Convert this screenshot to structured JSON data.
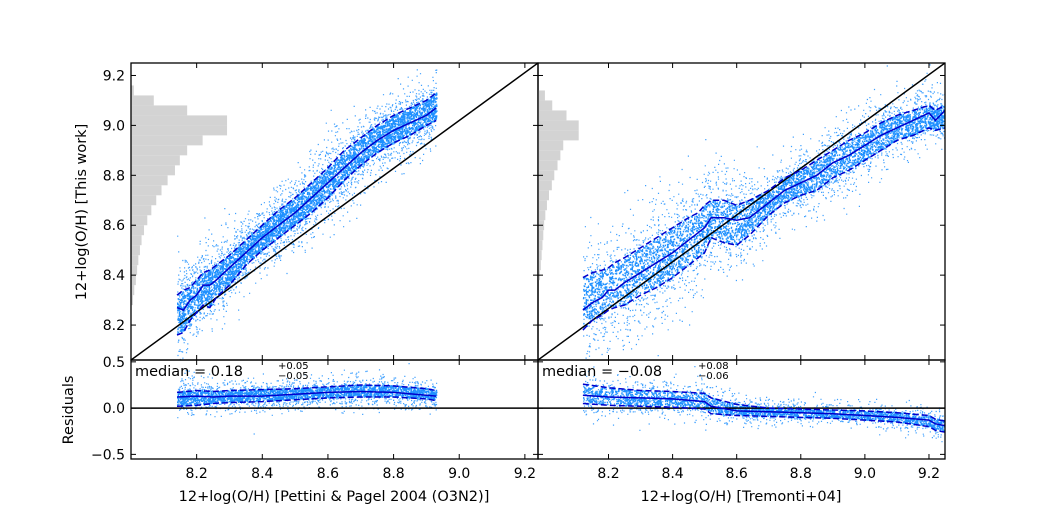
{
  "chart_data": [
    {
      "id": "left-top",
      "type": "scatter",
      "xlim": [
        8.0,
        9.24
      ],
      "ylim": [
        8.06,
        9.25
      ],
      "x_ticks": [
        8.2,
        8.4,
        8.6,
        8.8,
        9.0,
        9.2
      ],
      "x_tick_labels": [
        "",
        "",
        "",
        "",
        "",
        ""
      ],
      "y_ticks": [
        8.2,
        8.4,
        8.6,
        8.8,
        9.0,
        9.2
      ],
      "y_tick_labels": [
        "8.2",
        "8.4",
        "8.6",
        "8.8",
        "9.0",
        "9.2"
      ],
      "ylabel": "12+log(O/H) [This work]",
      "scatter_color": "#1e90ff",
      "line_color": "#0000cd",
      "one_to_one_line": [
        [
          8.0,
          8.06
        ],
        [
          9.24,
          9.25
        ]
      ],
      "histogram": {
        "color": "#d3d3d3",
        "bins": [
          {
            "y0": 8.28,
            "y1": 8.32,
            "w": 0.005
          },
          {
            "y0": 8.32,
            "y1": 8.36,
            "w": 0.008
          },
          {
            "y0": 8.36,
            "y1": 8.4,
            "w": 0.012
          },
          {
            "y0": 8.4,
            "y1": 8.44,
            "w": 0.015
          },
          {
            "y0": 8.44,
            "y1": 8.48,
            "w": 0.018
          },
          {
            "y0": 8.48,
            "y1": 8.52,
            "w": 0.022
          },
          {
            "y0": 8.52,
            "y1": 8.56,
            "w": 0.026
          },
          {
            "y0": 8.56,
            "y1": 8.6,
            "w": 0.032
          },
          {
            "y0": 8.6,
            "y1": 8.64,
            "w": 0.04
          },
          {
            "y0": 8.64,
            "y1": 8.68,
            "w": 0.05
          },
          {
            "y0": 8.68,
            "y1": 8.72,
            "w": 0.062
          },
          {
            "y0": 8.72,
            "y1": 8.76,
            "w": 0.075
          },
          {
            "y0": 8.76,
            "y1": 8.8,
            "w": 0.09
          },
          {
            "y0": 8.8,
            "y1": 8.84,
            "w": 0.108
          },
          {
            "y0": 8.84,
            "y1": 8.88,
            "w": 0.12
          },
          {
            "y0": 8.88,
            "y1": 8.92,
            "w": 0.138
          },
          {
            "y0": 8.92,
            "y1": 8.96,
            "w": 0.176
          },
          {
            "y0": 8.96,
            "y1": 9.0,
            "w": 0.236
          },
          {
            "y0": 9.0,
            "y1": 9.04,
            "w": 0.236
          },
          {
            "y0": 9.04,
            "y1": 9.08,
            "w": 0.138
          },
          {
            "y0": 9.08,
            "y1": 9.12,
            "w": 0.056
          },
          {
            "y0": 9.12,
            "y1": 9.16,
            "w": 0.007
          }
        ]
      },
      "band": {
        "x0": 8.14,
        "x1": 8.93,
        "width": 0.05
      },
      "median": {
        "x": [
          8.14,
          8.16,
          8.18,
          8.2,
          8.22,
          8.24,
          8.26,
          8.3,
          8.35,
          8.4,
          8.45,
          8.5,
          8.55,
          8.6,
          8.65,
          8.7,
          8.75,
          8.8,
          8.85,
          8.9,
          8.93
        ],
        "y": [
          8.27,
          8.26,
          8.3,
          8.32,
          8.36,
          8.36,
          8.38,
          8.43,
          8.49,
          8.55,
          8.6,
          8.65,
          8.71,
          8.77,
          8.83,
          8.89,
          8.94,
          8.98,
          9.01,
          9.04,
          9.07
        ]
      },
      "upper": {
        "x": [
          8.14,
          8.16,
          8.18,
          8.2,
          8.22,
          8.24,
          8.26,
          8.3,
          8.35,
          8.4,
          8.45,
          8.5,
          8.55,
          8.6,
          8.65,
          8.7,
          8.75,
          8.8,
          8.85,
          8.9,
          8.93
        ],
        "y": [
          8.32,
          8.34,
          8.35,
          8.38,
          8.41,
          8.42,
          8.44,
          8.48,
          8.54,
          8.6,
          8.66,
          8.71,
          8.77,
          8.83,
          8.9,
          8.95,
          9.0,
          9.04,
          9.07,
          9.1,
          9.13
        ]
      },
      "lower": {
        "x": [
          8.14,
          8.16,
          8.18,
          8.2,
          8.22,
          8.24,
          8.26,
          8.3,
          8.35,
          8.4,
          8.45,
          8.5,
          8.55,
          8.6,
          8.65,
          8.7,
          8.75,
          8.8,
          8.85,
          8.9,
          8.93
        ],
        "y": [
          8.16,
          8.17,
          8.22,
          8.25,
          8.28,
          8.27,
          8.31,
          8.36,
          8.44,
          8.5,
          8.55,
          8.6,
          8.65,
          8.71,
          8.78,
          8.84,
          8.89,
          8.93,
          8.96,
          9.0,
          9.02
        ]
      }
    },
    {
      "id": "right-top",
      "type": "scatter",
      "xlim": [
        7.98,
        9.25
      ],
      "ylim": [
        8.06,
        9.25
      ],
      "x_ticks": [
        8.2,
        8.4,
        8.6,
        8.8,
        9.0,
        9.2
      ],
      "x_tick_labels": [
        "",
        "",
        "",
        "",
        "",
        ""
      ],
      "y_ticks": [
        8.2,
        8.4,
        8.6,
        8.8,
        9.0,
        9.2
      ],
      "y_tick_labels": [
        "",
        "",
        "",
        "",
        "",
        ""
      ],
      "scatter_color": "#1e90ff",
      "line_color": "#0000cd",
      "one_to_one_line": [
        [
          7.98,
          8.06
        ],
        [
          9.25,
          9.25
        ]
      ],
      "histogram": {
        "color": "#d3d3d3",
        "bins": [
          {
            "y0": 8.38,
            "y1": 8.42,
            "w": 0.005
          },
          {
            "y0": 8.42,
            "y1": 8.46,
            "w": 0.007
          },
          {
            "y0": 8.46,
            "y1": 8.5,
            "w": 0.009
          },
          {
            "y0": 8.5,
            "y1": 8.54,
            "w": 0.011
          },
          {
            "y0": 8.54,
            "y1": 8.58,
            "w": 0.013
          },
          {
            "y0": 8.58,
            "y1": 8.62,
            "w": 0.015
          },
          {
            "y0": 8.62,
            "y1": 8.66,
            "w": 0.018
          },
          {
            "y0": 8.66,
            "y1": 8.7,
            "w": 0.022
          },
          {
            "y0": 8.7,
            "y1": 8.74,
            "w": 0.027
          },
          {
            "y0": 8.74,
            "y1": 8.78,
            "w": 0.034
          },
          {
            "y0": 8.78,
            "y1": 8.82,
            "w": 0.04
          },
          {
            "y0": 8.82,
            "y1": 8.86,
            "w": 0.048
          },
          {
            "y0": 8.86,
            "y1": 8.9,
            "w": 0.055
          },
          {
            "y0": 8.9,
            "y1": 8.94,
            "w": 0.062
          },
          {
            "y0": 8.94,
            "y1": 8.98,
            "w": 0.1
          },
          {
            "y0": 8.98,
            "y1": 9.02,
            "w": 0.1
          },
          {
            "y0": 9.02,
            "y1": 9.06,
            "w": 0.07
          },
          {
            "y0": 9.06,
            "y1": 9.1,
            "w": 0.035
          },
          {
            "y0": 9.1,
            "y1": 9.14,
            "w": 0.017
          }
        ]
      },
      "band": {
        "x0": 8.12,
        "x1": 9.25,
        "width": 0.07
      },
      "median": {
        "x": [
          8.12,
          8.15,
          8.18,
          8.2,
          8.22,
          8.25,
          8.3,
          8.35,
          8.4,
          8.45,
          8.48,
          8.5,
          8.52,
          8.56,
          8.6,
          8.64,
          8.7,
          8.75,
          8.8,
          8.85,
          8.9,
          8.95,
          9.0,
          9.05,
          9.1,
          9.15,
          9.2,
          9.22,
          9.25
        ],
        "y": [
          8.26,
          8.29,
          8.31,
          8.34,
          8.34,
          8.37,
          8.41,
          8.45,
          8.49,
          8.54,
          8.57,
          8.59,
          8.63,
          8.63,
          8.62,
          8.63,
          8.69,
          8.74,
          8.77,
          8.8,
          8.85,
          8.88,
          8.92,
          8.96,
          8.99,
          9.02,
          9.05,
          9.02,
          9.06
        ]
      },
      "upper": {
        "x": [
          8.12,
          8.15,
          8.18,
          8.2,
          8.22,
          8.25,
          8.3,
          8.35,
          8.4,
          8.45,
          8.48,
          8.5,
          8.52,
          8.56,
          8.6,
          8.64,
          8.7,
          8.75,
          8.8,
          8.85,
          8.9,
          8.95,
          9.0,
          9.05,
          9.1,
          9.15,
          9.2,
          9.22,
          9.25
        ],
        "y": [
          8.39,
          8.41,
          8.42,
          8.43,
          8.45,
          8.47,
          8.51,
          8.55,
          8.59,
          8.63,
          8.65,
          8.68,
          8.7,
          8.7,
          8.68,
          8.7,
          8.74,
          8.79,
          8.82,
          8.86,
          8.9,
          8.94,
          8.97,
          9.01,
          9.04,
          9.06,
          9.08,
          9.06,
          9.08
        ]
      },
      "lower": {
        "x": [
          8.12,
          8.15,
          8.18,
          8.2,
          8.22,
          8.25,
          8.3,
          8.35,
          8.4,
          8.45,
          8.48,
          8.5,
          8.52,
          8.56,
          8.6,
          8.64,
          8.7,
          8.75,
          8.8,
          8.85,
          8.9,
          8.95,
          9.0,
          9.05,
          9.1,
          9.15,
          9.2,
          9.22,
          9.25
        ],
        "y": [
          8.18,
          8.22,
          8.24,
          8.26,
          8.27,
          8.28,
          8.32,
          8.35,
          8.39,
          8.44,
          8.47,
          8.49,
          8.55,
          8.53,
          8.52,
          8.56,
          8.64,
          8.69,
          8.72,
          8.74,
          8.79,
          8.82,
          8.86,
          8.9,
          8.94,
          8.96,
          8.99,
          8.98,
          8.99
        ]
      }
    },
    {
      "id": "left-bottom",
      "type": "scatter",
      "xlim": [
        8.0,
        9.24
      ],
      "ylim": [
        -0.55,
        0.52
      ],
      "x_ticks": [
        8.2,
        8.4,
        8.6,
        8.8,
        9.0,
        9.2
      ],
      "x_tick_labels": [
        "8.2",
        "8.4",
        "8.6",
        "8.8",
        "9.0",
        "9.2"
      ],
      "y_ticks": [
        -0.5,
        0.0,
        0.5
      ],
      "y_tick_labels": [
        "−0.5",
        "0.0",
        "0.5"
      ],
      "xlabel": "12+log(O/H) [Pettini & Pagel 2004 (O3N2)]",
      "ylabel": "Residuals",
      "annotation": {
        "prefix": "median = 0.18",
        "sup": "+0.05",
        "sub": "−0.05"
      },
      "zero_line": 0.0,
      "scatter_color": "#1e90ff",
      "line_color": "#0000cd",
      "band": {
        "x0": 8.14,
        "x1": 8.93,
        "width": 0.06
      },
      "median": {
        "x": [
          8.14,
          8.2,
          8.25,
          8.3,
          8.4,
          8.5,
          8.6,
          8.7,
          8.8,
          8.9,
          8.93
        ],
        "y": [
          0.12,
          0.13,
          0.12,
          0.13,
          0.13,
          0.15,
          0.17,
          0.18,
          0.17,
          0.14,
          0.13
        ]
      },
      "upper": {
        "x": [
          8.14,
          8.2,
          8.25,
          8.3,
          8.4,
          8.5,
          8.6,
          8.7,
          8.8,
          8.9,
          8.93
        ],
        "y": [
          0.17,
          0.19,
          0.18,
          0.19,
          0.2,
          0.21,
          0.23,
          0.25,
          0.24,
          0.21,
          0.19
        ]
      },
      "lower": {
        "x": [
          8.14,
          8.2,
          8.25,
          8.3,
          8.4,
          8.5,
          8.6,
          8.7,
          8.8,
          8.9,
          8.93
        ],
        "y": [
          0.02,
          0.03,
          0.05,
          0.06,
          0.07,
          0.09,
          0.11,
          0.12,
          0.12,
          0.1,
          0.08
        ]
      }
    },
    {
      "id": "right-bottom",
      "type": "scatter",
      "xlim": [
        7.98,
        9.25
      ],
      "ylim": [
        -0.55,
        0.52
      ],
      "x_ticks": [
        8.2,
        8.4,
        8.6,
        8.8,
        9.0,
        9.2
      ],
      "x_tick_labels": [
        "8.2",
        "8.4",
        "8.6",
        "8.8",
        "9.0",
        "9.2"
      ],
      "y_ticks": [
        -0.5,
        0.0,
        0.5
      ],
      "y_tick_labels": [
        "",
        "",
        ""
      ],
      "xlabel": "12+log(O/H) [Tremonti+04]",
      "annotation": {
        "prefix": "median = −0.08",
        "sup": "+0.08",
        "sub": "−0.06"
      },
      "zero_line": 0.0,
      "scatter_color": "#1e90ff",
      "line_color": "#0000cd",
      "band": {
        "x0": 8.12,
        "x1": 9.25,
        "width": 0.08
      },
      "median": {
        "x": [
          8.12,
          8.2,
          8.3,
          8.4,
          8.5,
          8.52,
          8.6,
          8.7,
          8.8,
          8.9,
          9.0,
          9.1,
          9.2,
          9.22,
          9.25
        ],
        "y": [
          0.14,
          0.12,
          0.11,
          0.1,
          0.07,
          0.02,
          -0.03,
          -0.04,
          -0.05,
          -0.06,
          -0.08,
          -0.1,
          -0.13,
          -0.17,
          -0.19
        ]
      },
      "upper": {
        "x": [
          8.12,
          8.2,
          8.3,
          8.4,
          8.5,
          8.52,
          8.6,
          8.7,
          8.8,
          8.9,
          9.0,
          9.1,
          9.2,
          9.22,
          9.25
        ],
        "y": [
          0.26,
          0.22,
          0.19,
          0.18,
          0.16,
          0.11,
          0.04,
          0.0,
          -0.01,
          -0.02,
          -0.03,
          -0.05,
          -0.08,
          -0.12,
          -0.14
        ]
      },
      "lower": {
        "x": [
          8.12,
          8.2,
          8.3,
          8.4,
          8.5,
          8.52,
          8.6,
          8.7,
          8.8,
          8.9,
          9.0,
          9.1,
          9.2,
          9.22,
          9.25
        ],
        "y": [
          0.05,
          0.03,
          0.02,
          0.01,
          -0.01,
          -0.06,
          -0.08,
          -0.09,
          -0.1,
          -0.11,
          -0.13,
          -0.15,
          -0.2,
          -0.24,
          -0.26
        ]
      }
    }
  ]
}
